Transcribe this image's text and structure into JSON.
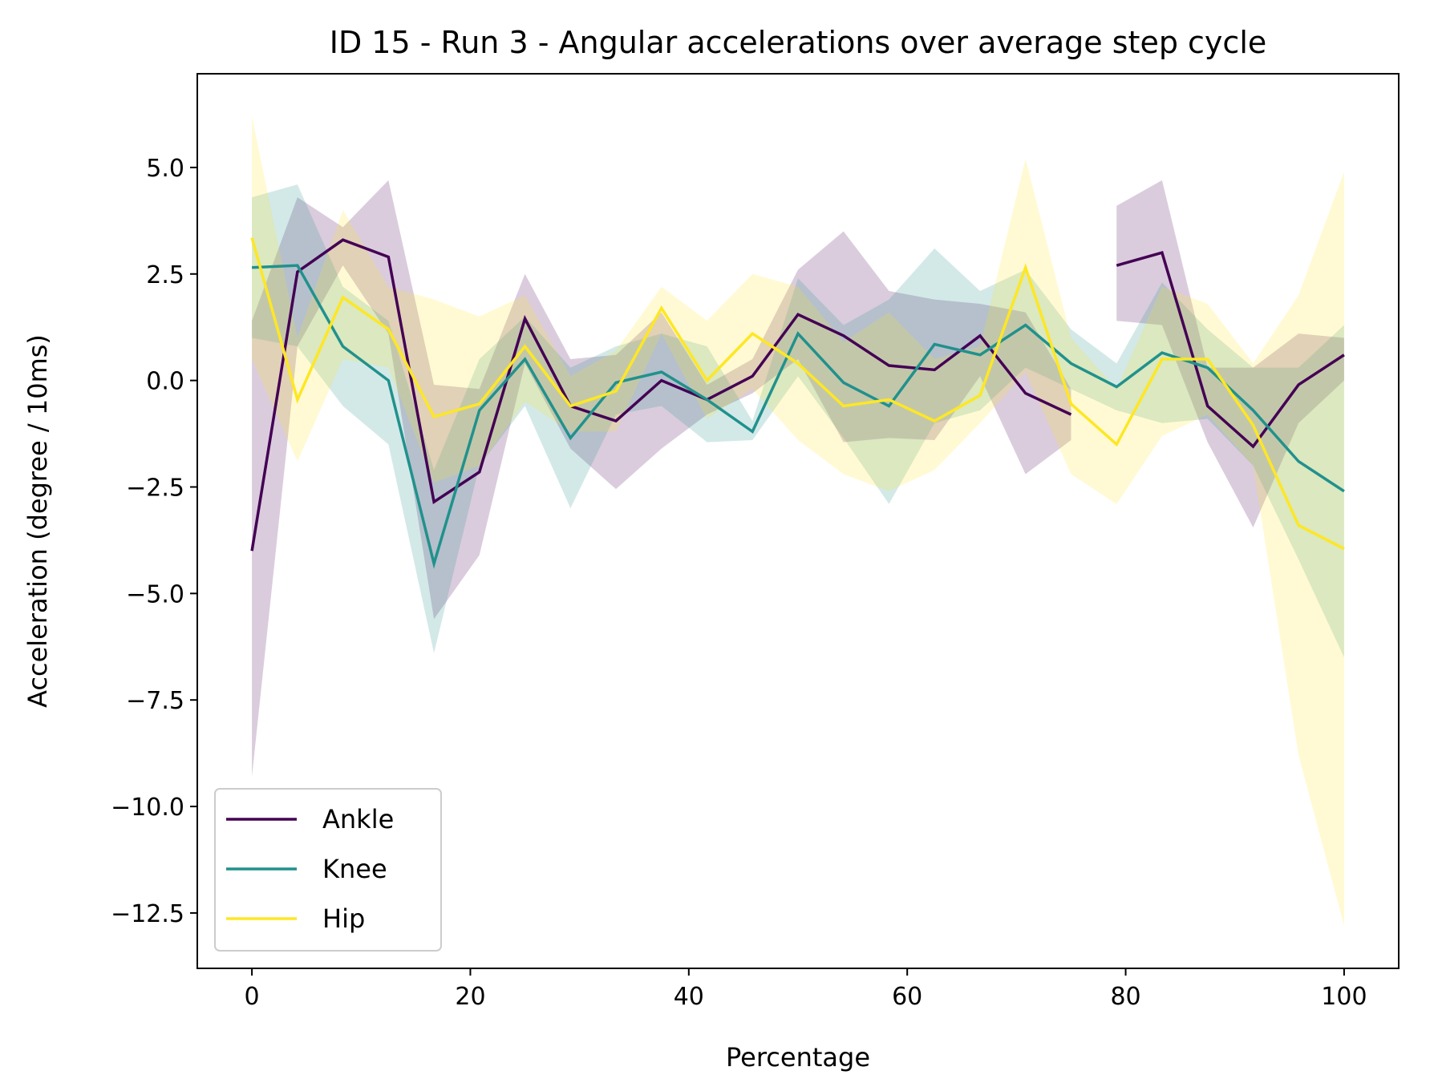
{
  "chart_data": {
    "type": "line",
    "title": "ID 15 - Run 3 - Angular accelerations over average step cycle",
    "xlabel": "Percentage",
    "ylabel": "Acceleration (degree / 10ms)",
    "xlim": [
      -5,
      105
    ],
    "ylim": [
      -13.8,
      7.2
    ],
    "xticks": [
      0,
      20,
      40,
      60,
      80,
      100
    ],
    "xtick_labels": [
      "0",
      "20",
      "40",
      "60",
      "80",
      "100"
    ],
    "yticks": [
      5.0,
      2.5,
      0.0,
      -2.5,
      -5.0,
      -7.5,
      -10.0,
      -12.5
    ],
    "ytick_labels": [
      "5.0",
      "2.5",
      "0.0",
      "−2.5",
      "−5.0",
      "−7.5",
      "−10.0",
      "−12.5"
    ],
    "grid": false,
    "legend_position": "lower-left",
    "x": [
      0,
      4.17,
      8.33,
      12.5,
      16.67,
      20.83,
      25,
      29.17,
      33.33,
      37.5,
      41.67,
      45.83,
      50,
      54.17,
      58.33,
      62.5,
      66.67,
      70.83,
      75,
      79.17,
      83.33,
      87.5,
      91.67,
      95.83,
      100
    ],
    "series": [
      {
        "name": "Ankle",
        "color": "#440154",
        "values": [
          -4.0,
          2.55,
          3.3,
          2.9,
          -2.85,
          -2.15,
          1.45,
          -0.6,
          -0.95,
          0.0,
          -0.45,
          0.1,
          1.55,
          1.05,
          0.35,
          0.25,
          1.05,
          -0.3,
          -0.8,
          null,
          null,
          null,
          null,
          null,
          null
        ],
        "lower": [
          -9.3,
          0.8,
          2.7,
          1.1,
          -5.6,
          -4.1,
          0.4,
          -1.6,
          -2.55,
          -1.6,
          -0.8,
          -0.3,
          0.5,
          -1.45,
          -1.35,
          -1.4,
          0.1,
          -2.2,
          -1.4,
          null,
          null,
          null,
          null,
          null,
          null
        ],
        "upper": [
          1.4,
          4.3,
          3.6,
          4.7,
          -0.1,
          -0.2,
          2.5,
          0.5,
          0.6,
          1.6,
          -0.1,
          0.5,
          2.6,
          3.5,
          2.1,
          1.9,
          1.8,
          1.6,
          -0.2,
          null,
          null,
          null,
          null,
          null,
          null
        ]
      },
      {
        "name": "Ankle",
        "color": "#440154",
        "values": [
          null,
          null,
          null,
          null,
          null,
          null,
          null,
          null,
          null,
          null,
          null,
          null,
          null,
          null,
          null,
          null,
          null,
          null,
          null,
          2.7,
          3.0,
          -0.6,
          -1.55,
          -0.1,
          0.6
        ],
        "lower": [
          null,
          null,
          null,
          null,
          null,
          null,
          null,
          null,
          null,
          null,
          null,
          null,
          null,
          null,
          null,
          null,
          null,
          null,
          null,
          1.4,
          1.3,
          -1.45,
          -3.45,
          -1.0,
          0.0
        ],
        "upper": [
          null,
          null,
          null,
          null,
          null,
          null,
          null,
          null,
          null,
          null,
          null,
          null,
          null,
          null,
          null,
          null,
          null,
          null,
          null,
          4.1,
          4.7,
          0.3,
          0.3,
          1.1,
          1.0
        ]
      },
      {
        "name": "Knee",
        "color": "#21918c",
        "values": [
          2.65,
          2.7,
          0.8,
          0.0,
          -4.3,
          -0.7,
          0.5,
          -1.35,
          -0.05,
          0.2,
          -0.45,
          -1.2,
          1.1,
          -0.05,
          -0.6,
          0.85,
          0.6,
          1.3,
          0.4,
          -0.15,
          0.65,
          0.3,
          -0.7,
          -1.9,
          -2.6
        ],
        "lower": [
          1.0,
          0.8,
          -0.6,
          -1.5,
          -6.4,
          -2.0,
          -0.6,
          -3.0,
          -0.8,
          -0.6,
          -1.45,
          -1.4,
          0.1,
          -1.35,
          -2.9,
          -1.0,
          -0.7,
          0.3,
          -0.2,
          -0.7,
          -1.0,
          -0.9,
          -2.0,
          -4.2,
          -6.5
        ],
        "upper": [
          4.3,
          4.6,
          2.2,
          1.4,
          -2.1,
          0.5,
          1.5,
          0.3,
          0.8,
          1.1,
          0.8,
          -0.95,
          2.4,
          1.3,
          1.9,
          3.1,
          2.1,
          2.6,
          1.2,
          0.4,
          2.3,
          1.2,
          0.3,
          0.3,
          1.3
        ]
      },
      {
        "name": "Hip",
        "color": "#fde725",
        "values": [
          3.35,
          -0.45,
          1.95,
          1.2,
          -0.85,
          -0.55,
          0.8,
          -0.6,
          -0.25,
          1.7,
          0.0,
          1.1,
          0.4,
          -0.6,
          -0.45,
          -0.95,
          -0.35,
          2.65,
          -0.55,
          -1.5,
          0.5,
          0.5,
          -1.05,
          -3.4,
          -3.95
        ],
        "lower": [
          0.5,
          -1.9,
          0.5,
          0.3,
          -2.4,
          -2.0,
          -0.5,
          -1.2,
          -1.2,
          1.1,
          -0.9,
          -0.2,
          -1.4,
          -2.2,
          -2.6,
          -2.1,
          -1.0,
          0.2,
          -2.2,
          -2.9,
          -1.3,
          -0.8,
          -2.0,
          -8.8,
          -12.8
        ],
        "upper": [
          6.2,
          1.0,
          4.0,
          2.2,
          1.9,
          1.5,
          2.0,
          0.1,
          0.7,
          2.2,
          1.4,
          2.5,
          2.2,
          0.9,
          1.6,
          0.5,
          0.8,
          5.2,
          1.0,
          -0.2,
          2.2,
          1.8,
          0.4,
          2.0,
          4.9
        ]
      }
    ],
    "legend": [
      {
        "name": "Ankle",
        "color": "#440154"
      },
      {
        "name": "Knee",
        "color": "#21918c"
      },
      {
        "name": "Hip",
        "color": "#fde725"
      }
    ]
  }
}
